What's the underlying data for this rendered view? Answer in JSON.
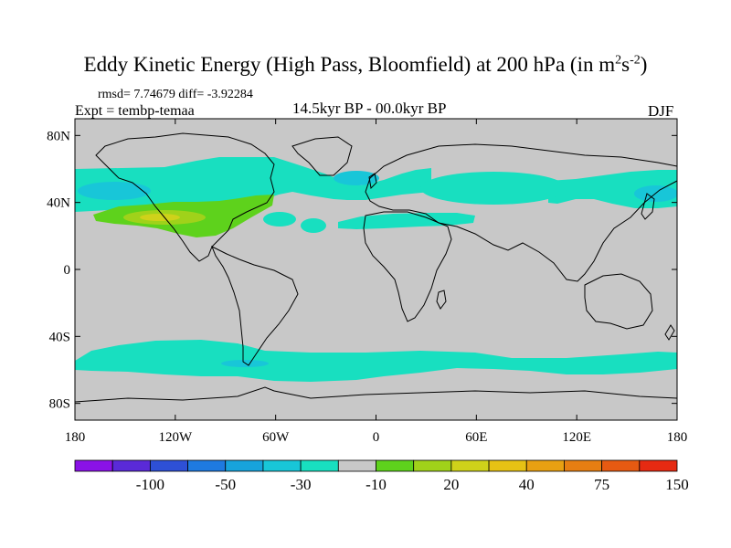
{
  "title": {
    "main": "Eddy Kinetic Energy (High Pass, Bloomfield) at 200 hPa (in m",
    "sup1": "2",
    "mid": "s",
    "sup2": "-2",
    "close": ")"
  },
  "stats": "rmsd= 7.74679 diff= -3.92284",
  "experiment": "Expt = tembp-temaa",
  "period": "14.5kyr BP - 00.0kyr BP",
  "season": "DJF",
  "lat_ticks": [
    {
      "label": "80N",
      "value": 80
    },
    {
      "label": "40N",
      "value": 40
    },
    {
      "label": "0",
      "value": 0
    },
    {
      "label": "40S",
      "value": -40
    },
    {
      "label": "80S",
      "value": -80
    }
  ],
  "lon_ticks": [
    {
      "label": "180",
      "value": -180
    },
    {
      "label": "120W",
      "value": -120
    },
    {
      "label": "60W",
      "value": -60
    },
    {
      "label": "0",
      "value": 0
    },
    {
      "label": "60E",
      "value": 60
    },
    {
      "label": "120E",
      "value": 120
    },
    {
      "label": "180",
      "value": 180
    }
  ],
  "colorbar": {
    "colors": [
      "#8a12e6",
      "#5a2ad8",
      "#2e50d6",
      "#1e7ae0",
      "#17a3dc",
      "#18c6d8",
      "#18dfc0",
      "#c8c8c8",
      "#5ed21c",
      "#a0d21a",
      "#cfd21a",
      "#e6c214",
      "#e8a012",
      "#e67e12",
      "#e65a12",
      "#e62a12"
    ],
    "labels": [
      {
        "text": "-100",
        "boundary": 2
      },
      {
        "text": "-50",
        "boundary": 4
      },
      {
        "text": "-30",
        "boundary": 6
      },
      {
        "text": "-10",
        "boundary": 8
      },
      {
        "text": "20",
        "boundary": 10
      },
      {
        "text": "40",
        "boundary": 12
      },
      {
        "text": "75",
        "boundary": 14
      },
      {
        "text": "150",
        "boundary": 16
      }
    ]
  },
  "map_colors": {
    "background": "#c8c8c8",
    "cyan": "#18dfc0",
    "light_blue": "#18c6d8",
    "green": "#5ed21c",
    "yellow_green": "#a0d21a",
    "yellow": "#cfd21a"
  }
}
